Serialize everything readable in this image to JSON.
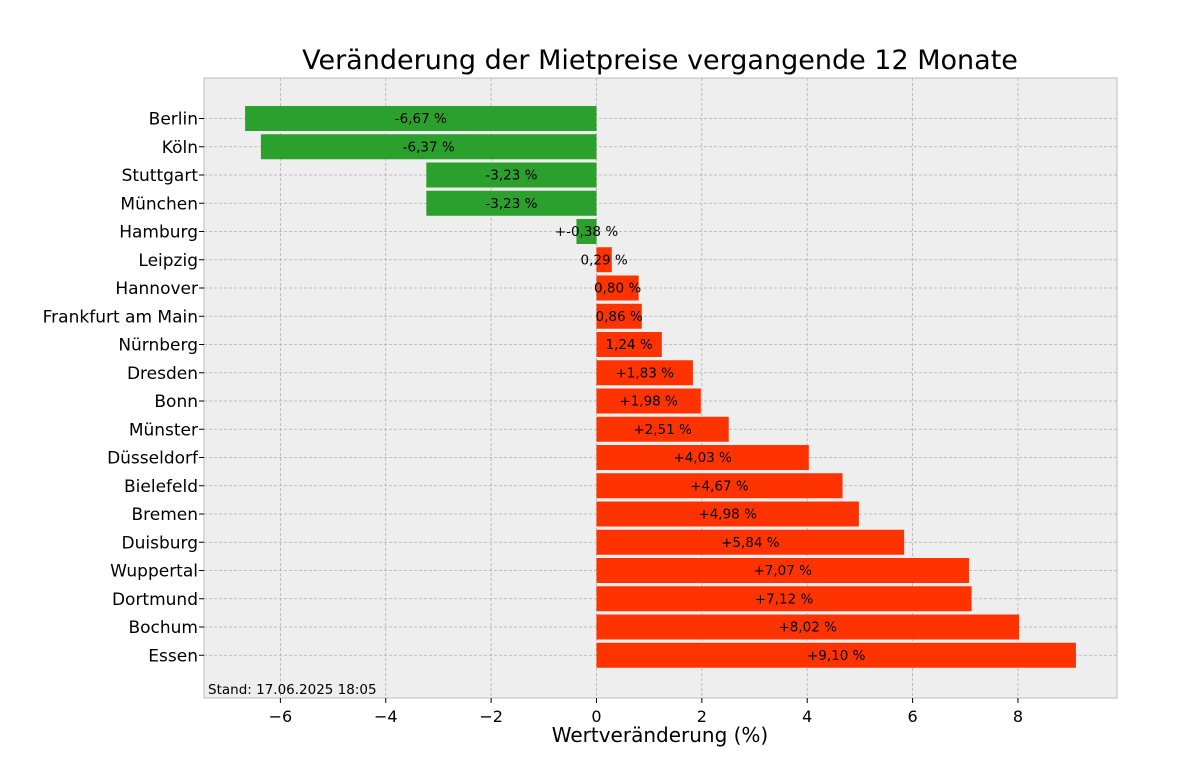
{
  "chart_data": {
    "type": "bar",
    "orientation": "horizontal",
    "title": "Veränderung der Mietpreise vergangende 12 Monate",
    "xlabel": "Wertveränderung (%)",
    "ylabel": "",
    "xlim": [
      -7.45,
      9.88
    ],
    "xticks": [
      -6,
      -4,
      -2,
      0,
      2,
      4,
      6,
      8
    ],
    "xtick_labels": [
      "−6",
      "−4",
      "−2",
      "0",
      "2",
      "4",
      "6",
      "8"
    ],
    "grid": true,
    "colors": {
      "negative": "#2ca02c",
      "positive": "#ff3300",
      "background": "#eeeeee"
    },
    "categories": [
      "Berlin",
      "Köln",
      "Stuttgart",
      "München",
      "Hamburg",
      "Leipzig",
      "Hannover",
      "Frankfurt am Main",
      "Nürnberg",
      "Dresden",
      "Bonn",
      "Münster",
      "Düsseldorf",
      "Bielefeld",
      "Bremen",
      "Duisburg",
      "Wuppertal",
      "Dortmund",
      "Bochum",
      "Essen"
    ],
    "values": [
      -6.67,
      -6.37,
      -3.23,
      -3.23,
      -0.38,
      0.29,
      0.8,
      0.86,
      1.24,
      1.83,
      1.98,
      2.51,
      4.03,
      4.67,
      4.98,
      5.84,
      7.07,
      7.12,
      8.02,
      9.1
    ],
    "data_labels": [
      "-6,67 %",
      "-6,37 %",
      "-3,23 %",
      "-3,23 %",
      "+-0,38 %",
      "0,29 %",
      "0,80 %",
      "0,86 %",
      "1,24 %",
      "+1,83 %",
      "+1,98 %",
      "+2,51 %",
      "+4,03 %",
      "+4,67 %",
      "+4,98 %",
      "+5,84 %",
      "+7,07 %",
      "+7,12 %",
      "+8,02 %",
      "+9,10 %"
    ],
    "annotation": "Stand: 17.06.2025 18:05"
  }
}
